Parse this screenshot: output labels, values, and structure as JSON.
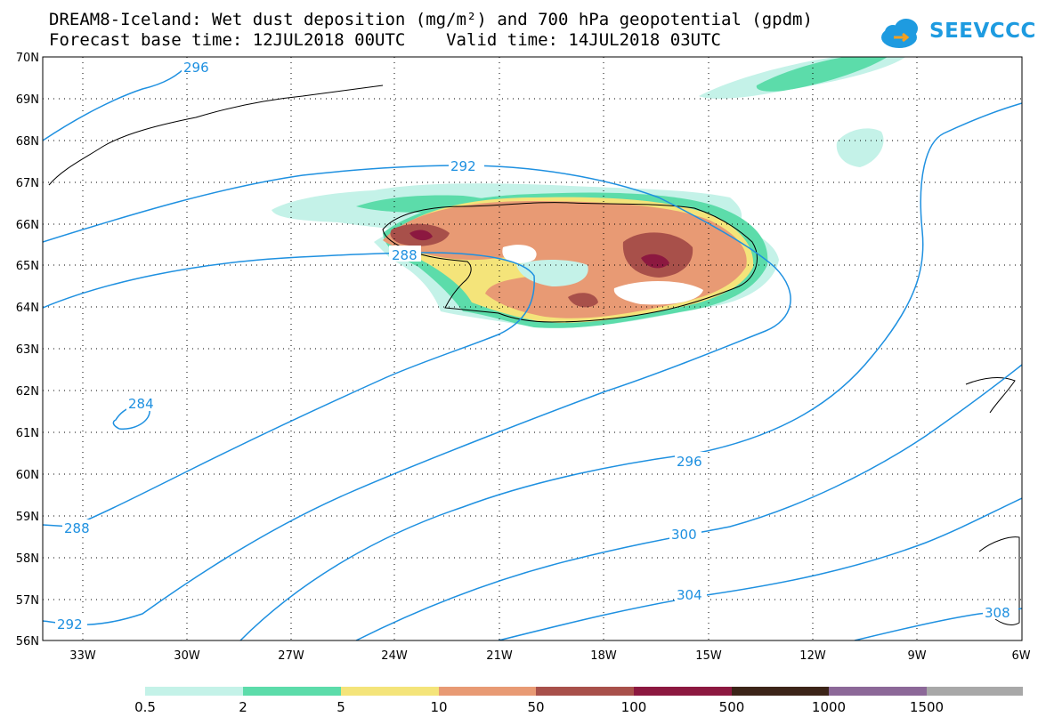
{
  "title": {
    "line1": "DREAM8-Iceland: Wet dust deposition (mg/m²) and 700 hPa geopotential (gpdm)",
    "line2": "Forecast base time: 12JUL2018 00UTC    Valid time: 14JUL2018 03UTC"
  },
  "logo": {
    "text": "SEEVCCC",
    "icon": "cloud-icon",
    "color": "#1e9be0"
  },
  "axes": {
    "lat_labels": [
      "70N",
      "69N",
      "68N",
      "67N",
      "66N",
      "65N",
      "64N",
      "63N",
      "62N",
      "61N",
      "60N",
      "59N",
      "58N",
      "57N",
      "56N"
    ],
    "lon_labels": [
      "33W",
      "30W",
      "27W",
      "24W",
      "21W",
      "18W",
      "15W",
      "12W",
      "9W",
      "6W"
    ],
    "lat_range": [
      56,
      70
    ],
    "lon_range": [
      -34.3,
      -6
    ]
  },
  "contours": {
    "color": "#1e90e0",
    "labels": [
      "296",
      "292",
      "288",
      "284",
      "288",
      "296",
      "300",
      "304",
      "292",
      "308"
    ]
  },
  "colorbar": {
    "labels": [
      "0.5",
      "2",
      "5",
      "10",
      "50",
      "100",
      "500",
      "1000",
      "1500"
    ],
    "colors": [
      "#c4f2e8",
      "#5cdcaa",
      "#f4e47a",
      "#e89a74",
      "#a8504a",
      "#8c1840",
      "#3c2418",
      "#8c6898",
      "#a8a8a8"
    ]
  }
}
